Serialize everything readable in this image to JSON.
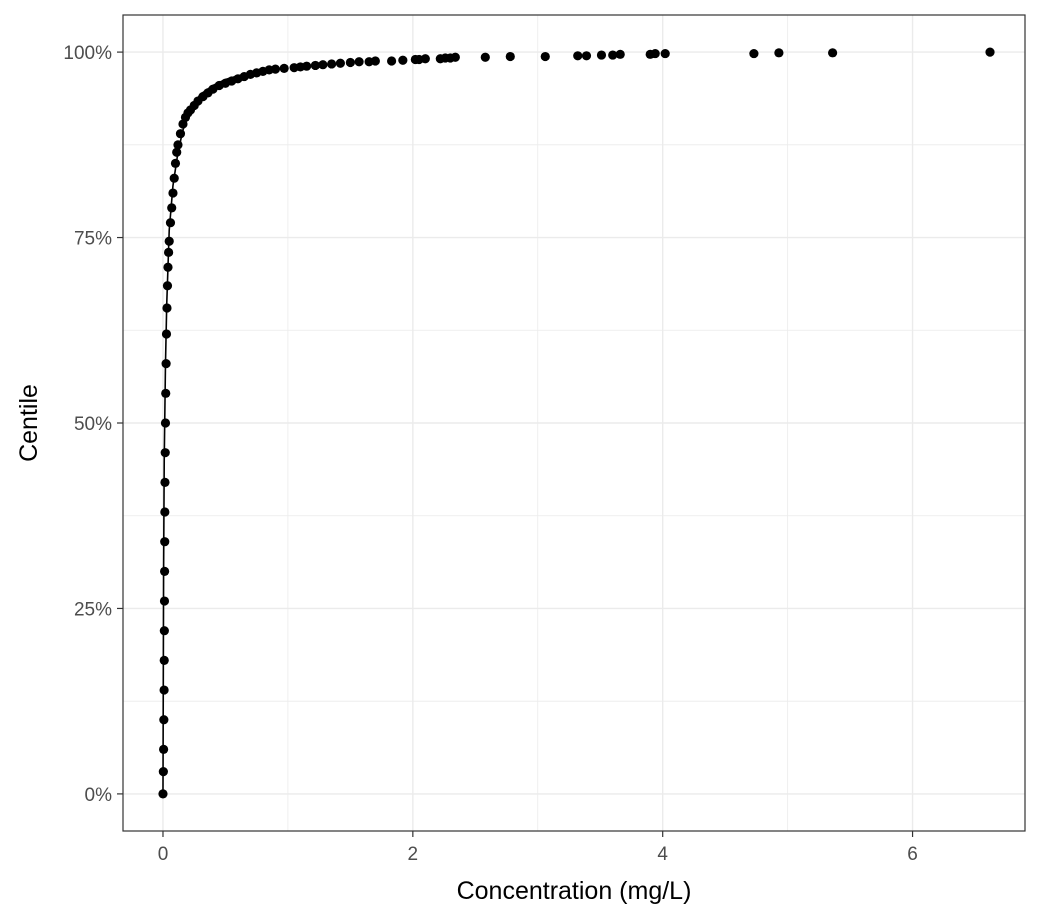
{
  "chart_data": {
    "type": "scatter",
    "title": "",
    "xlabel": "Concentration (mg/L)",
    "ylabel": "Centile",
    "xlim": [
      -0.32,
      6.9
    ],
    "ylim": [
      -0.05,
      1.05
    ],
    "xticks": [
      0,
      2,
      4,
      6
    ],
    "xtick_labels": [
      "0",
      "2",
      "4",
      "6"
    ],
    "yticks": [
      0,
      0.25,
      0.5,
      0.75,
      1
    ],
    "ytick_labels": [
      "0%",
      "25%",
      "50%",
      "75%",
      "100%"
    ],
    "grid": true,
    "legend": "none",
    "colors": {
      "points": "#000000",
      "band": "#bebebe",
      "grid": "#ebebeb",
      "panel_border": "#333333"
    },
    "fitted_curve": {
      "x": [
        0,
        0.005,
        0.01,
        0.02,
        0.03,
        0.05,
        0.08,
        0.12,
        0.16,
        0.2,
        0.25,
        0.3,
        0.4,
        0.5,
        0.6,
        0.7,
        0.8,
        0.9,
        1.0
      ],
      "y": [
        0,
        0.3,
        0.45,
        0.58,
        0.66,
        0.76,
        0.82,
        0.865,
        0.895,
        0.915,
        0.932,
        0.943,
        0.955,
        0.963,
        0.968,
        0.972,
        0.975,
        0.977,
        0.978
      ]
    },
    "points": {
      "x": [
        0,
        0.003,
        0.005,
        0.007,
        0.009,
        0.01,
        0.011,
        0.012,
        0.013,
        0.014,
        0.015,
        0.016,
        0.018,
        0.02,
        0.022,
        0.025,
        0.028,
        0.032,
        0.036,
        0.04,
        0.045,
        0.05,
        0.06,
        0.07,
        0.08,
        0.09,
        0.1,
        0.11,
        0.12,
        0.14,
        0.16,
        0.18,
        0.2,
        0.22,
        0.25,
        0.28,
        0.32,
        0.36,
        0.4,
        0.45,
        0.5,
        0.55,
        0.6,
        0.65,
        0.7,
        0.75,
        0.8,
        0.85,
        0.9,
        0.97,
        1.05,
        1.1,
        1.15,
        1.22,
        1.28,
        1.35,
        1.42,
        1.5,
        1.57,
        1.65,
        1.7,
        1.83,
        1.92,
        2.02,
        2.05,
        2.1,
        2.22,
        2.26,
        2.3,
        2.34,
        2.58,
        2.78,
        3.06,
        3.32,
        3.39,
        3.51,
        3.6,
        3.66,
        3.9,
        3.94,
        4.02,
        4.73,
        4.93,
        5.36,
        6.62
      ],
      "y": [
        0.0,
        0.03,
        0.06,
        0.1,
        0.14,
        0.18,
        0.22,
        0.26,
        0.3,
        0.34,
        0.38,
        0.42,
        0.46,
        0.5,
        0.54,
        0.58,
        0.62,
        0.655,
        0.685,
        0.71,
        0.73,
        0.745,
        0.77,
        0.79,
        0.81,
        0.83,
        0.85,
        0.865,
        0.875,
        0.89,
        0.903,
        0.912,
        0.918,
        0.922,
        0.928,
        0.934,
        0.94,
        0.945,
        0.95,
        0.955,
        0.958,
        0.961,
        0.964,
        0.967,
        0.97,
        0.972,
        0.974,
        0.976,
        0.977,
        0.978,
        0.979,
        0.98,
        0.981,
        0.982,
        0.983,
        0.984,
        0.985,
        0.986,
        0.987,
        0.987,
        0.988,
        0.988,
        0.989,
        0.99,
        0.99,
        0.991,
        0.991,
        0.992,
        0.992,
        0.993,
        0.993,
        0.994,
        0.994,
        0.995,
        0.995,
        0.996,
        0.996,
        0.997,
        0.997,
        0.998,
        0.998,
        0.998,
        0.999,
        0.999,
        1.0
      ]
    }
  }
}
